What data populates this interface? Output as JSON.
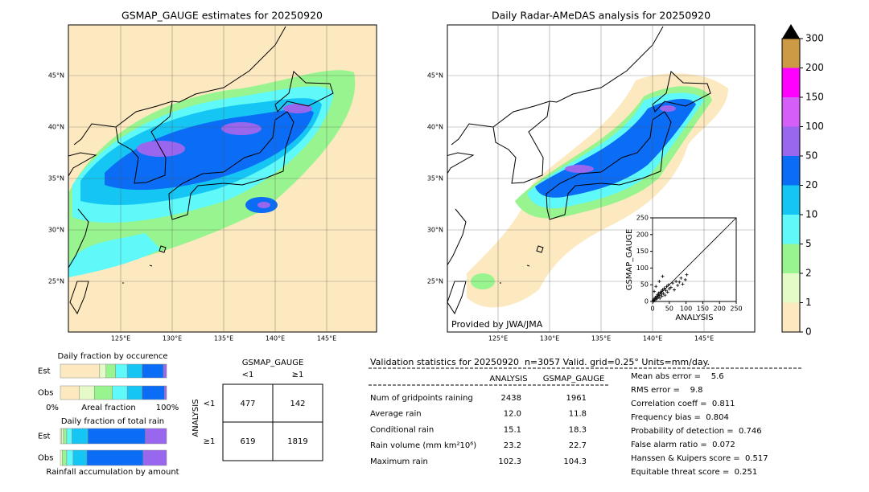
{
  "left_map": {
    "title": "GSMAP_GAUGE estimates for 20250920",
    "lat_labels": [
      "45°N",
      "40°N",
      "35°N",
      "30°N",
      "25°N"
    ],
    "lon_labels": [
      "125°E",
      "130°E",
      "135°E",
      "140°E",
      "145°E"
    ]
  },
  "right_map": {
    "title": "Daily Radar-AMeDAS analysis for 20250920",
    "lat_labels": [
      "45°N",
      "40°N",
      "35°N",
      "30°N",
      "25°N"
    ],
    "lon_labels": [
      "125°E",
      "130°E",
      "135°E",
      "140°E",
      "145°E"
    ],
    "credit": "Provided by JWA/JMA"
  },
  "colorbar": {
    "ticks": [
      0,
      1,
      2,
      5,
      10,
      20,
      50,
      100,
      150,
      200,
      300
    ],
    "colors": [
      "#fde9c0",
      "#e4fbc8",
      "#98f48e",
      "#5ff9f9",
      "#15c6f5",
      "#0b6cf6",
      "#9966ee",
      "#d65ef8",
      "#ff00ff",
      "#cc9944"
    ]
  },
  "scatter": {
    "xlabel": "ANALYSIS",
    "ylabel": "GSMAP_GAUGE",
    "xlim": [
      0,
      250
    ],
    "ylim": [
      0,
      250
    ],
    "xticks": [
      0,
      50,
      100,
      150,
      200,
      250
    ],
    "yticks": [
      0,
      50,
      100,
      150,
      200,
      250
    ],
    "x": [
      2,
      3,
      5,
      6,
      8,
      10,
      12,
      14,
      15,
      17,
      18,
      20,
      22,
      24,
      25,
      27,
      28,
      30,
      32,
      35,
      37,
      40,
      42,
      45,
      48,
      50,
      55,
      60,
      65,
      70,
      75,
      80,
      85,
      90,
      98,
      102,
      5,
      10,
      20,
      30
    ],
    "y": [
      4,
      1,
      8,
      3,
      12,
      6,
      15,
      9,
      20,
      13,
      25,
      18,
      10,
      28,
      22,
      30,
      16,
      35,
      24,
      40,
      19,
      33,
      45,
      28,
      50,
      38,
      42,
      55,
      35,
      60,
      48,
      58,
      70,
      52,
      65,
      80,
      30,
      45,
      60,
      75
    ]
  },
  "occurrence": {
    "title": "Daily fraction by occurence",
    "row_labels": [
      "Est",
      "Obs"
    ],
    "est": [
      37,
      6,
      9,
      11,
      14,
      20,
      3
    ],
    "obs": [
      18,
      14,
      17,
      14,
      14,
      21,
      2
    ],
    "axis_labels": [
      "0%",
      "Areal fraction",
      "100%"
    ]
  },
  "total_rain": {
    "title": "Daily fraction of total rain",
    "row_labels": [
      "Est",
      "Obs"
    ],
    "est": [
      1,
      2,
      3,
      5,
      15,
      54,
      20
    ],
    "obs": [
      0,
      2,
      4,
      6,
      13,
      53,
      22
    ],
    "xlabel": "Rainfall accumulation by amount"
  },
  "contingency": {
    "title": "GSMAP_GAUGE",
    "col_labels": [
      "<1",
      "≥1"
    ],
    "row_title": "ANALYSIS",
    "row_labels": [
      "<1",
      "≥1"
    ],
    "cells": [
      [
        "477",
        "142"
      ],
      [
        "619",
        "1819"
      ]
    ]
  },
  "validation": {
    "header": "Validation statistics for 20250920  n=3057 Valid. grid=0.25° Units=mm/day.",
    "columns": [
      "ANALYSIS",
      "GSMAP_GAUGE"
    ],
    "rows": [
      [
        "Num of gridpoints raining",
        "2438",
        "1961"
      ],
      [
        "Average rain",
        "12.0",
        "11.8"
      ],
      [
        "Conditional rain",
        "15.1",
        "18.3"
      ],
      [
        "Rain volume (mm km²10⁶)",
        "23.2",
        "22.7"
      ],
      [
        "Maximum rain",
        "102.3",
        "104.3"
      ]
    ],
    "scores": [
      "Mean abs error =    5.6",
      "RMS error =    9.8",
      "Correlation coeff =  0.811",
      "Frequency bias =  0.804",
      "Probability of detection =  0.746",
      "False alarm ratio =  0.072",
      "Hanssen & Kuipers score =  0.517",
      "Equitable threat score =  0.251"
    ]
  }
}
